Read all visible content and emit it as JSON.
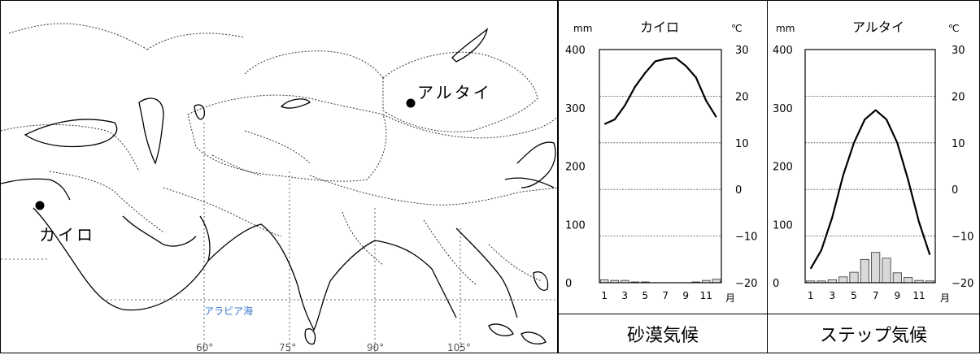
{
  "map": {
    "cities": [
      {
        "name": "アルタイ",
        "id": "altai"
      },
      {
        "name": "カイロ",
        "id": "cairo"
      }
    ],
    "sea_label": "アラビア海",
    "longitude_labels": [
      "60°",
      "75°",
      "90°",
      "105°"
    ],
    "colors": {
      "coast": "#000000",
      "border": "#333333",
      "grid": "#555555",
      "sea_label": "#3a78c8"
    }
  },
  "charts": [
    {
      "id": "cairo",
      "title": "カイロ",
      "caption": "砂漠気候",
      "left_unit": "mm",
      "right_unit": "℃",
      "month_unit": "月",
      "left_ticks": [
        "400",
        "300",
        "200",
        "100",
        "0"
      ],
      "right_ticks": [
        "30",
        "20",
        "10",
        "0",
        "−10",
        "−20"
      ],
      "month_ticks": [
        "1",
        "3",
        "5",
        "7",
        "9",
        "11"
      ]
    },
    {
      "id": "altai",
      "title": "アルタイ",
      "caption": "ステップ気候",
      "left_unit": "mm",
      "right_unit": "℃",
      "month_unit": "月",
      "left_ticks": [
        "400",
        "300",
        "200",
        "100",
        "0"
      ],
      "right_ticks": [
        "30",
        "20",
        "10",
        "0",
        "−10",
        "−20"
      ],
      "month_ticks": [
        "1",
        "3",
        "5",
        "7",
        "9",
        "11"
      ]
    }
  ],
  "chart_data": [
    {
      "type": "bar+line",
      "title": "カイロ",
      "xlabel": "月",
      "ylabel_left": "mm",
      "ylabel_right": "℃",
      "categories": [
        1,
        2,
        3,
        4,
        5,
        6,
        7,
        8,
        9,
        10,
        11,
        12
      ],
      "precipitation_mm": [
        5,
        4,
        4,
        1,
        0.5,
        0,
        0,
        0,
        0,
        0.7,
        4,
        6
      ],
      "temperature_c": [
        14,
        15,
        18,
        22,
        25,
        27.5,
        28,
        28.2,
        26.5,
        24,
        19,
        15.5
      ],
      "ylim_left": [
        0,
        400
      ],
      "ylim_right": [
        -20,
        30
      ],
      "grid": true
    },
    {
      "type": "bar+line",
      "title": "アルタイ",
      "xlabel": "月",
      "ylabel_left": "mm",
      "ylabel_right": "℃",
      "categories": [
        1,
        2,
        3,
        4,
        5,
        6,
        7,
        8,
        9,
        10,
        11,
        12
      ],
      "precipitation_mm": [
        3,
        3,
        5,
        10,
        18,
        40,
        52,
        42,
        17,
        9,
        4,
        3
      ],
      "temperature_c": [
        -17,
        -13,
        -6,
        3,
        10,
        15,
        17,
        15,
        10,
        2,
        -7,
        -14
      ],
      "ylim_left": [
        0,
        400
      ],
      "ylim_right": [
        -20,
        30
      ],
      "grid": true
    }
  ]
}
